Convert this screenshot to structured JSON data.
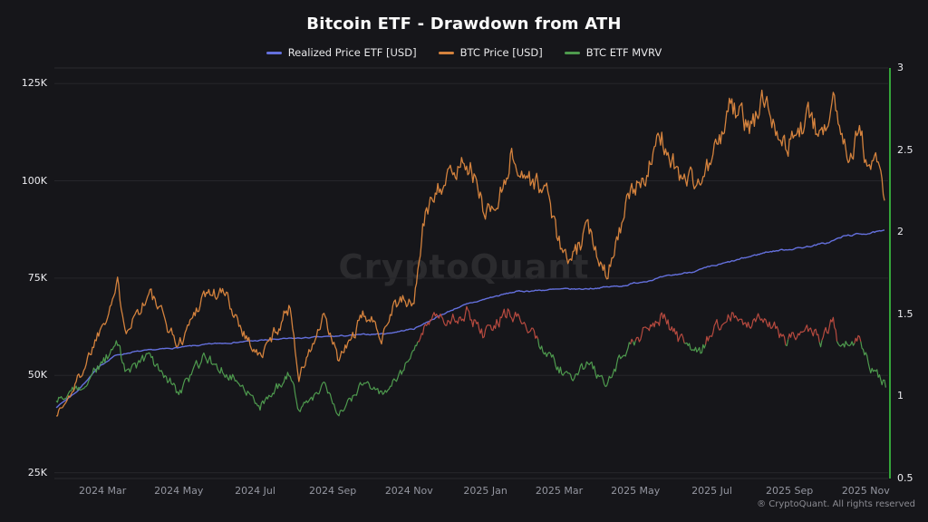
{
  "chart_data": {
    "type": "line",
    "title": "Bitcoin ETF - Drawdown from ATH",
    "watermark": "CryptoQuant",
    "footer": "® CryptoQuant. All rights reserved",
    "background_color": "#16161a",
    "grid": "horizontal-only",
    "legend_position": "top-center",
    "x_axis": {
      "start_date": "2024-01-24",
      "end_date": "2025-11-16",
      "tick_labels": [
        "2024 Mar",
        "2024 May",
        "2024 Jul",
        "2024 Sep",
        "2024 Nov",
        "2025 Jan",
        "2025 Mar",
        "2025 May",
        "2025 Jul",
        "2025 Sep",
        "2025 Nov"
      ]
    },
    "y_axis_left": {
      "unit": "USD",
      "min": 23500,
      "max": 129000,
      "ticks": [
        25000,
        50000,
        75000,
        100000,
        125000
      ],
      "tick_labels": [
        "25K",
        "50K",
        "75K",
        "100K",
        "125K"
      ]
    },
    "y_axis_right": {
      "unit": "ratio",
      "min": 0.5,
      "max": 3.0,
      "ticks": [
        0.5,
        1,
        1.5,
        2,
        2.5,
        3
      ],
      "tick_labels": [
        "0.5",
        "1",
        "1.5",
        "2",
        "2.5",
        "3"
      ],
      "axis_color": "#35a53a"
    },
    "series": [
      {
        "name": "Realized Price ETF [USD]",
        "color": "#6470dd",
        "axis": "left",
        "keypoints": [
          [
            "2024-01-24",
            41800
          ],
          [
            "2024-02-10",
            46000
          ],
          [
            "2024-02-25",
            51500
          ],
          [
            "2024-03-10",
            55000
          ],
          [
            "2024-03-25",
            56000
          ],
          [
            "2024-04-20",
            56800
          ],
          [
            "2024-06-01",
            58200
          ],
          [
            "2024-07-15",
            59200
          ],
          [
            "2024-09-01",
            60000
          ],
          [
            "2024-10-15",
            60800
          ],
          [
            "2024-11-05",
            62000
          ],
          [
            "2024-11-20",
            64500
          ],
          [
            "2024-12-10",
            67500
          ],
          [
            "2025-01-05",
            70000
          ],
          [
            "2025-01-25",
            71500
          ],
          [
            "2025-02-20",
            72000
          ],
          [
            "2025-03-20",
            72200
          ],
          [
            "2025-04-20",
            73000
          ],
          [
            "2025-05-20",
            75000
          ],
          [
            "2025-06-20",
            77000
          ],
          [
            "2025-07-20",
            79500
          ],
          [
            "2025-08-15",
            81800
          ],
          [
            "2025-09-10",
            82800
          ],
          [
            "2025-10-01",
            84000
          ],
          [
            "2025-10-15",
            85800
          ],
          [
            "2025-11-01",
            86500
          ],
          [
            "2025-11-16",
            87000
          ]
        ]
      },
      {
        "name": "BTC Price [USD]",
        "color": "#d4823d",
        "axis": "left",
        "keypoints": [
          [
            "2024-01-24",
            40200
          ],
          [
            "2024-02-01",
            43000
          ],
          [
            "2024-02-15",
            52000
          ],
          [
            "2024-02-28",
            62000
          ],
          [
            "2024-03-13",
            73000
          ],
          [
            "2024-03-20",
            62500
          ],
          [
            "2024-04-08",
            71000
          ],
          [
            "2024-05-01",
            57500
          ],
          [
            "2024-05-21",
            71200
          ],
          [
            "2024-06-07",
            70800
          ],
          [
            "2024-06-24",
            60000
          ],
          [
            "2024-07-05",
            54500
          ],
          [
            "2024-07-29",
            68000
          ],
          [
            "2024-08-05",
            49500
          ],
          [
            "2024-08-25",
            64500
          ],
          [
            "2024-09-06",
            53800
          ],
          [
            "2024-09-27",
            65800
          ],
          [
            "2024-10-10",
            60500
          ],
          [
            "2024-10-21",
            69000
          ],
          [
            "2024-11-05",
            68500
          ],
          [
            "2024-11-12",
            88000
          ],
          [
            "2024-11-22",
            98500
          ],
          [
            "2024-12-05",
            101000
          ],
          [
            "2024-12-17",
            106300
          ],
          [
            "2024-12-30",
            93500
          ],
          [
            "2025-01-09",
            92500
          ],
          [
            "2025-01-21",
            106100
          ],
          [
            "2025-01-31",
            102000
          ],
          [
            "2025-02-21",
            96500
          ],
          [
            "2025-02-28",
            84300
          ],
          [
            "2025-03-10",
            78500
          ],
          [
            "2025-03-24",
            87500
          ],
          [
            "2025-04-08",
            76500
          ],
          [
            "2025-04-25",
            94500
          ],
          [
            "2025-05-12",
            104000
          ],
          [
            "2025-05-22",
            111000
          ],
          [
            "2025-06-05",
            101500
          ],
          [
            "2025-06-22",
            99500
          ],
          [
            "2025-07-09",
            111000
          ],
          [
            "2025-07-14",
            119800
          ],
          [
            "2025-08-01",
            113500
          ],
          [
            "2025-08-13",
            122000
          ],
          [
            "2025-08-29",
            108500
          ],
          [
            "2025-09-18",
            117000
          ],
          [
            "2025-09-26",
            109300
          ],
          [
            "2025-10-06",
            124000
          ],
          [
            "2025-10-12",
            111500
          ],
          [
            "2025-10-20",
            107800
          ],
          [
            "2025-10-27",
            113800
          ],
          [
            "2025-11-04",
            101500
          ],
          [
            "2025-11-10",
            105500
          ],
          [
            "2025-11-16",
            94000
          ]
        ]
      },
      {
        "name": "BTC ETF MVRV",
        "color": "#4e9a4e",
        "color_high": "#b74a3f",
        "high_threshold": 1.33,
        "axis": "right",
        "keypoints": [
          [
            "2024-01-24",
            0.97
          ],
          [
            "2024-02-10",
            1.04
          ],
          [
            "2024-03-13",
            1.31
          ],
          [
            "2024-03-20",
            1.14
          ],
          [
            "2024-04-08",
            1.24
          ],
          [
            "2024-05-01",
            1.02
          ],
          [
            "2024-05-21",
            1.24
          ],
          [
            "2024-06-18",
            1.1
          ],
          [
            "2024-07-05",
            0.94
          ],
          [
            "2024-07-29",
            1.15
          ],
          [
            "2024-08-05",
            0.9
          ],
          [
            "2024-08-25",
            1.07
          ],
          [
            "2024-09-06",
            0.9
          ],
          [
            "2024-09-27",
            1.09
          ],
          [
            "2024-10-10",
            1.0
          ],
          [
            "2024-10-29",
            1.18
          ],
          [
            "2024-11-12",
            1.4
          ],
          [
            "2024-11-22",
            1.53
          ],
          [
            "2024-12-01",
            1.46
          ],
          [
            "2024-12-17",
            1.52
          ],
          [
            "2024-12-30",
            1.38
          ],
          [
            "2025-01-20",
            1.52
          ],
          [
            "2025-02-01",
            1.44
          ],
          [
            "2025-02-28",
            1.18
          ],
          [
            "2025-03-10",
            1.1
          ],
          [
            "2025-03-24",
            1.21
          ],
          [
            "2025-04-07",
            1.06
          ],
          [
            "2025-04-22",
            1.28
          ],
          [
            "2025-05-22",
            1.49
          ],
          [
            "2025-06-05",
            1.34
          ],
          [
            "2025-06-22",
            1.29
          ],
          [
            "2025-07-14",
            1.51
          ],
          [
            "2025-08-01",
            1.42
          ],
          [
            "2025-08-13",
            1.5
          ],
          [
            "2025-08-29",
            1.33
          ],
          [
            "2025-09-18",
            1.42
          ],
          [
            "2025-09-26",
            1.32
          ],
          [
            "2025-10-06",
            1.47
          ],
          [
            "2025-10-11",
            1.3
          ],
          [
            "2025-10-27",
            1.36
          ],
          [
            "2025-11-04",
            1.18
          ],
          [
            "2025-11-17",
            1.07
          ]
        ]
      }
    ]
  }
}
